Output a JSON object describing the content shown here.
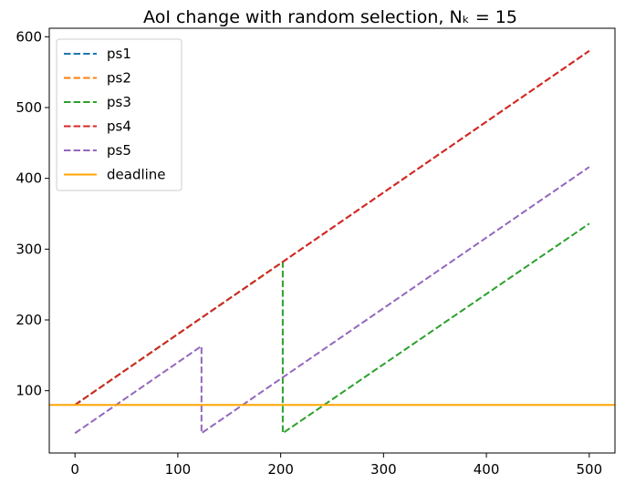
{
  "chart_data": {
    "type": "line",
    "title": "AoI change with random selection, Nₖ = 15",
    "xlim": [
      -25,
      525
    ],
    "ylim": [
      12,
      612
    ],
    "x_ticks": [
      0,
      100,
      200,
      300,
      400,
      500
    ],
    "y_ticks": [
      100,
      200,
      300,
      400,
      500,
      600
    ],
    "grid": false,
    "legend_position": "upper left",
    "series": [
      {
        "name": "ps1",
        "color": "#1f77b4",
        "style": "dashed",
        "points": [
          [
            0,
            80
          ],
          [
            500,
            580
          ]
        ]
      },
      {
        "name": "ps2",
        "color": "#ff7f0e",
        "style": "dashed",
        "points": [
          [
            0,
            80
          ],
          [
            500,
            580
          ]
        ]
      },
      {
        "name": "ps3",
        "color": "#2ca02c",
        "style": "dashed",
        "points": [
          [
            0,
            80
          ],
          [
            202,
            282
          ],
          [
            202,
            40
          ],
          [
            500,
            336
          ]
        ]
      },
      {
        "name": "ps4",
        "color": "#d62728",
        "style": "dashed",
        "points": [
          [
            0,
            80
          ],
          [
            500,
            580
          ]
        ]
      },
      {
        "name": "ps5",
        "color": "#9467bd",
        "style": "dashed",
        "points": [
          [
            0,
            40
          ],
          [
            123,
            163
          ],
          [
            123,
            40
          ],
          [
            500,
            416
          ]
        ]
      },
      {
        "name": "deadline",
        "color": "#ffa500",
        "style": "solid",
        "points": [
          [
            -25,
            80
          ],
          [
            525,
            80
          ]
        ]
      }
    ]
  }
}
